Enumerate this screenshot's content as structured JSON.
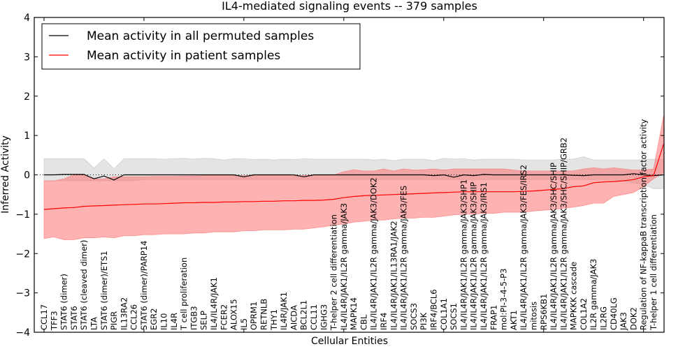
{
  "chart_data": {
    "type": "line",
    "title": "IL4-mediated signaling events -- 379 samples",
    "xlabel": "Cellular Entities",
    "ylabel": "Inferred Activity",
    "ylim": [
      -4,
      4
    ],
    "yticks": [
      "4",
      "3",
      "2",
      "1",
      "0",
      "−1",
      "−2",
      "−3",
      "−4"
    ],
    "ytick_values": [
      4,
      3,
      2,
      1,
      0,
      -1,
      -2,
      -3,
      -4
    ],
    "grid": false,
    "legend": {
      "placement": "top-left",
      "entries": [
        {
          "label": "Mean activity in all permuted samples",
          "color": "#000000"
        },
        {
          "label": "Mean activity in patient samples",
          "color": "#ff0000"
        }
      ]
    },
    "colors": {
      "permuted_line": "#000000",
      "permuted_band": "#bbbbbb",
      "patient_line": "#ff0000",
      "patient_band": "#ff6666"
    },
    "categories": [
      "CCL17",
      "TFF3",
      "STAT6 (dimer)",
      "STAT6",
      "STAT6 (cleaved dimer)",
      "LTA",
      "STAT6 (dimer)/ETS1",
      "PIGR",
      "IL13RA2",
      "CCL26",
      "STAT6 (dimer)/PARP14",
      "EGR2",
      "IL10",
      "IL4R",
      "T cell proliferation",
      "ITGB3",
      "SELP",
      "IL4/IL4R/JAK1",
      "FCER2",
      "ALOX15",
      "IL5",
      "OPRM1",
      "RETNLB",
      "THY1",
      "IL4R/JAK1",
      "AICDA",
      "BCL2L1",
      "CCL11",
      "IGHG3",
      "T-helper 2 cell differentiation",
      "IL4/IL4R/JAK1/IL2R gamma/JAK3",
      "MAPK14",
      "CBL",
      "IL4/IL4R/JAK1/IL2R gamma/JAK3/DOK2",
      "IRF4",
      "IL4/IL4R/JAK1/IL13RA1/JAK2",
      "IL4/IL4R/JAK1/IL2R gamma/JAK3/FES",
      "SOCS3",
      "PI3K",
      "IRF4/BCL6",
      "COL1A1",
      "SOCS1",
      "IL4/IL4R/JAK1/IL2R gamma/JAK3/SHP1",
      "IL4/IL4R/JAK1/IL2R gamma/JAK3/SHIP",
      "IL4/IL4R/JAK1/IL2R gamma/JAK3/IRS1",
      "FRAP1",
      "mol:PI-3-4-5-P3",
      "AKT1",
      "IL4/IL4R/JAK1/IL2R gamma/JAK3/FES/IRS2",
      "mitosis",
      "RPS6KB1",
      "IL4/IL4R/JAK1/IL2R gamma/JAK3/SHC/SHIP",
      "IL4/IL4R/JAK1/IL2R gamma/JAK3/SHC/SHIP/GRB2",
      "MAPKKK cascade",
      "COL1A2",
      "IL2R gamma/JAK3",
      "IL2RG",
      "CD40LG",
      "JAK3",
      "DOK2",
      "Regulation of NF-kappaB transcription factor activity",
      "T-helper 1 cell differentiation"
    ],
    "series": [
      {
        "name": "Mean activity in all permuted samples",
        "values": [
          0.0,
          0.0,
          0.01,
          0.01,
          0.01,
          -0.1,
          -0.03,
          -0.13,
          0.0,
          0.0,
          0.0,
          0.0,
          0.0,
          0.0,
          0.0,
          0.0,
          0.0,
          0.0,
          0.0,
          0.0,
          -0.05,
          0.0,
          0.0,
          0.0,
          0.0,
          0.0,
          -0.05,
          0.0,
          0.0,
          0.0,
          0.0,
          0.0,
          0.0,
          0.0,
          0.0,
          0.0,
          0.0,
          0.0,
          0.0,
          -0.02,
          0.0,
          -0.06,
          0.0,
          -0.02,
          0.01,
          0.0,
          0.0,
          0.0,
          0.0,
          0.0,
          0.0,
          0.0,
          0.0,
          -0.01,
          -0.02,
          0.0,
          0.0,
          0.0,
          0.0,
          0.03,
          0.0,
          -0.02,
          0.0
        ],
        "lower": [
          -0.15,
          -0.15,
          -0.15,
          -0.15,
          -0.15,
          -0.15,
          -0.15,
          -0.15,
          -0.15,
          -0.15,
          -0.12,
          -0.12,
          -0.12,
          -0.12,
          -0.12,
          -0.12,
          -0.12,
          -0.12,
          -0.12,
          -0.12,
          -0.12,
          -0.12,
          -0.12,
          -0.12,
          -0.12,
          -0.12,
          -0.12,
          -0.12,
          -0.12,
          -0.12,
          -0.12,
          -0.12,
          -0.12,
          -0.12,
          -0.12,
          -0.12,
          -0.12,
          -0.12,
          -0.12,
          -0.12,
          -0.12,
          -0.12,
          -0.12,
          -0.12,
          -0.12,
          -0.12,
          -0.12,
          -0.12,
          -0.12,
          -0.12,
          -0.12,
          -0.12,
          -0.12,
          -0.12,
          -0.12,
          -0.12,
          -0.12,
          -0.12,
          -0.15,
          -0.2,
          -0.25,
          -0.35,
          -0.35
        ],
        "upper": [
          0.41,
          0.41,
          0.41,
          0.41,
          0.41,
          0.17,
          0.41,
          0.15,
          0.41,
          0.41,
          0.41,
          0.41,
          0.4,
          0.41,
          0.42,
          0.4,
          0.42,
          0.41,
          0.38,
          0.41,
          0.41,
          0.39,
          0.4,
          0.38,
          0.4,
          0.39,
          0.41,
          0.4,
          0.4,
          0.4,
          0.4,
          0.4,
          0.4,
          0.38,
          0.4,
          0.36,
          0.4,
          0.4,
          0.4,
          0.36,
          0.42,
          0.4,
          0.41,
          0.38,
          0.4,
          0.4,
          0.4,
          0.4,
          0.38,
          0.38,
          0.38,
          0.38,
          0.4,
          0.4,
          0.46,
          0.38,
          0.38,
          0.38,
          0.38,
          0.38,
          0.38,
          0.4,
          0.4
        ]
      },
      {
        "name": "Mean activity in patient samples",
        "values": [
          -0.88,
          -0.86,
          -0.84,
          -0.83,
          -0.8,
          -0.79,
          -0.78,
          -0.77,
          -0.76,
          -0.75,
          -0.74,
          -0.74,
          -0.73,
          -0.72,
          -0.71,
          -0.71,
          -0.7,
          -0.7,
          -0.69,
          -0.69,
          -0.68,
          -0.68,
          -0.67,
          -0.67,
          -0.66,
          -0.66,
          -0.65,
          -0.65,
          -0.64,
          -0.62,
          -0.58,
          -0.55,
          -0.53,
          -0.52,
          -0.51,
          -0.5,
          -0.49,
          -0.48,
          -0.47,
          -0.46,
          -0.45,
          -0.44,
          -0.43,
          -0.43,
          -0.43,
          -0.43,
          -0.43,
          -0.43,
          -0.42,
          -0.41,
          -0.39,
          -0.37,
          -0.35,
          -0.3,
          -0.28,
          -0.2,
          -0.18,
          -0.17,
          -0.15,
          -0.12,
          -0.05,
          -0.02,
          0.78
        ],
        "lower": [
          -1.62,
          -1.58,
          -1.65,
          -1.65,
          -1.6,
          -1.6,
          -1.58,
          -1.6,
          -1.55,
          -1.55,
          -1.52,
          -1.52,
          -1.5,
          -1.5,
          -1.5,
          -1.48,
          -1.48,
          -1.45,
          -1.45,
          -1.45,
          -1.42,
          -1.42,
          -1.4,
          -1.4,
          -1.4,
          -1.38,
          -1.38,
          -1.35,
          -1.32,
          -1.28,
          -1.25,
          -1.2,
          -1.18,
          -1.15,
          -1.15,
          -1.12,
          -1.1,
          -1.1,
          -1.08,
          -1.08,
          -1.05,
          -1.02,
          -1.0,
          -1.0,
          -0.98,
          -0.98,
          -0.95,
          -0.95,
          -0.95,
          -0.92,
          -0.9,
          -0.88,
          -0.85,
          -0.82,
          -0.78,
          -0.72,
          -0.72,
          -0.55,
          -0.5,
          -0.45,
          -0.3,
          -0.1,
          0.05
        ],
        "upper": [
          -0.15,
          -0.15,
          -0.1,
          0.0,
          0.0,
          -0.1,
          -0.1,
          -0.05,
          -0.05,
          -0.05,
          -0.05,
          -0.04,
          -0.04,
          -0.04,
          -0.03,
          -0.03,
          -0.02,
          -0.02,
          -0.02,
          -0.02,
          -0.02,
          -0.02,
          -0.02,
          -0.02,
          -0.02,
          -0.02,
          -0.02,
          0.0,
          0.0,
          0.0,
          0.08,
          0.13,
          0.1,
          0.1,
          0.15,
          0.1,
          0.15,
          0.12,
          0.13,
          0.15,
          0.12,
          0.15,
          0.15,
          0.15,
          0.15,
          0.15,
          0.15,
          0.12,
          0.1,
          0.1,
          0.1,
          0.1,
          0.1,
          0.1,
          0.15,
          0.18,
          0.15,
          0.18,
          0.15,
          0.12,
          0.12,
          0.15,
          1.5
        ]
      }
    ]
  }
}
